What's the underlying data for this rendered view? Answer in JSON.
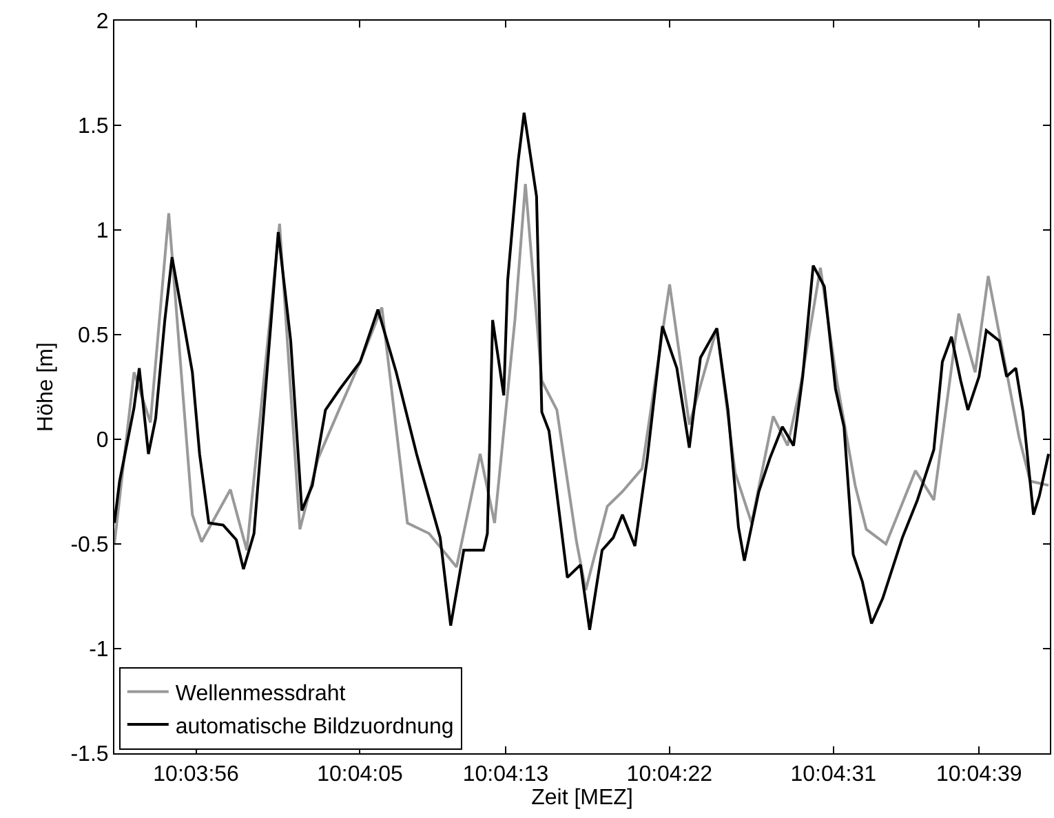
{
  "chart_data": {
    "type": "line",
    "xlabel": "Zeit [MEZ]",
    "ylabel": "Höhe [m]",
    "xlim": [
      10.06431,
      10.07858
    ],
    "xticks": [
      {
        "value": 10.065556,
        "label": "10:03:56"
      },
      {
        "value": 10.068056,
        "label": "10:04:05"
      },
      {
        "value": 10.070278,
        "label": "10:04:13"
      },
      {
        "value": 10.072778,
        "label": "10:04:22"
      },
      {
        "value": 10.075278,
        "label": "10:04:31"
      },
      {
        "value": 10.0775,
        "label": "10:04:39"
      }
    ],
    "ylim": [
      -1.5,
      2
    ],
    "yticks": [
      -1.5,
      -1,
      -0.5,
      0,
      0.5,
      1,
      1.5,
      2
    ],
    "grid": false,
    "legend": "bottom left",
    "line_style": "solid",
    "marker": "none",
    "series": [
      {
        "name": "Wellenmessdraht",
        "color": "#999999",
        "x": [
          10.06431,
          10.06461,
          10.06486,
          10.06514,
          10.0655,
          10.06564,
          10.06608,
          10.06633,
          10.06683,
          10.06714,
          10.06742,
          10.06775,
          10.06806,
          10.06839,
          10.06878,
          10.06911,
          10.06953,
          10.06989,
          10.07011,
          10.07042,
          10.07058,
          10.07083,
          10.07106,
          10.07136,
          10.0715,
          10.07183,
          10.07206,
          10.07236,
          10.07278,
          10.07308,
          10.0735,
          10.07378,
          10.07403,
          10.07436,
          10.07458,
          10.07478,
          10.07508,
          10.07533,
          10.07561,
          10.07578,
          10.07608,
          10.07653,
          10.07681,
          10.07719,
          10.07744,
          10.07764,
          10.07811,
          10.07828,
          10.07856
        ],
        "values": [
          -0.5,
          0.32,
          0.08,
          1.08,
          -0.36,
          -0.49,
          -0.24,
          -0.53,
          1.03,
          -0.43,
          -0.09,
          0.15,
          0.37,
          0.63,
          -0.4,
          -0.45,
          -0.61,
          -0.07,
          -0.4,
          0.57,
          1.22,
          0.28,
          0.14,
          -0.49,
          -0.72,
          -0.32,
          -0.25,
          -0.14,
          0.74,
          0.07,
          0.53,
          -0.16,
          -0.4,
          0.11,
          -0.03,
          0.26,
          0.82,
          0.28,
          -0.22,
          -0.43,
          -0.5,
          -0.15,
          -0.29,
          0.6,
          0.32,
          0.78,
          0.01,
          -0.2,
          -0.22
        ]
      },
      {
        "name": "automatische Bildzuordnung",
        "color": "#000000",
        "x": [
          10.06431,
          10.06439,
          10.06461,
          10.06469,
          10.06483,
          10.06494,
          10.06508,
          10.06519,
          10.06536,
          10.0655,
          10.06561,
          10.06575,
          10.06597,
          10.06617,
          10.06628,
          10.06644,
          10.06681,
          10.067,
          10.06717,
          10.06733,
          10.06753,
          10.06775,
          10.06806,
          10.06833,
          10.06861,
          10.06892,
          10.069,
          10.06928,
          10.06939,
          10.06944,
          10.06964,
          10.06994,
          10.07,
          10.07008,
          10.07025,
          10.07031,
          10.07047,
          10.07056,
          10.07075,
          10.07083,
          10.07094,
          10.07122,
          10.07142,
          10.07156,
          10.07175,
          10.07192,
          10.07206,
          10.07225,
          10.07244,
          10.07267,
          10.07289,
          10.07308,
          10.07325,
          10.0735,
          10.07367,
          10.07383,
          10.07392,
          10.07414,
          10.07431,
          10.0745,
          10.07467,
          10.07481,
          10.07497,
          10.07514,
          10.07531,
          10.07544,
          10.07558,
          10.07572,
          10.07586,
          10.07603,
          10.07633,
          10.07656,
          10.07681,
          10.07694,
          10.07708,
          10.07722,
          10.07733,
          10.0775,
          10.07761,
          10.07781,
          10.07792,
          10.07806,
          10.07817,
          10.07833,
          10.07842,
          10.07856
        ],
        "values": [
          -0.4,
          -0.2,
          0.15,
          0.34,
          -0.07,
          0.1,
          0.57,
          0.87,
          0.57,
          0.32,
          -0.07,
          -0.4,
          -0.41,
          -0.48,
          -0.62,
          -0.45,
          0.99,
          0.47,
          -0.34,
          -0.22,
          0.14,
          0.24,
          0.37,
          0.62,
          0.32,
          -0.07,
          -0.16,
          -0.47,
          -0.76,
          -0.89,
          -0.53,
          -0.53,
          -0.45,
          0.57,
          0.21,
          0.76,
          1.33,
          1.56,
          1.16,
          0.13,
          0.04,
          -0.66,
          -0.6,
          -0.91,
          -0.53,
          -0.47,
          -0.36,
          -0.51,
          -0.09,
          0.54,
          0.34,
          -0.04,
          0.39,
          0.53,
          0.14,
          -0.42,
          -0.58,
          -0.25,
          -0.09,
          0.06,
          -0.03,
          0.3,
          0.83,
          0.73,
          0.24,
          0.06,
          -0.55,
          -0.68,
          -0.88,
          -0.76,
          -0.47,
          -0.29,
          -0.05,
          0.37,
          0.49,
          0.28,
          0.14,
          0.3,
          0.52,
          0.47,
          0.3,
          0.34,
          0.13,
          -0.36,
          -0.27,
          -0.07
        ]
      }
    ]
  }
}
